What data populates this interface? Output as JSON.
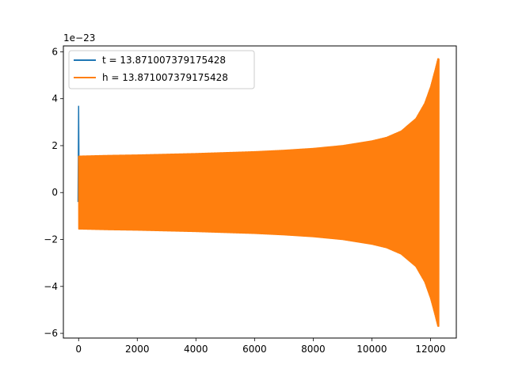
{
  "chart_data": {
    "type": "line",
    "offset_text": "1e−23",
    "xlim": [
      -520,
      12880
    ],
    "ylim": [
      -6.2,
      6.25
    ],
    "xticks": [
      0,
      2000,
      4000,
      6000,
      8000,
      10000,
      12000
    ],
    "xtick_labels": [
      "0",
      "2000",
      "4000",
      "6000",
      "8000",
      "10000",
      "12000"
    ],
    "yticks": [
      -6,
      -4,
      -2,
      0,
      2,
      4,
      6
    ],
    "ytick_labels": [
      "−6",
      "−4",
      "−2",
      "0",
      "2",
      "4",
      "6"
    ],
    "legend_position": "top-left",
    "series": [
      {
        "name": "t = 13.871007379175428",
        "color": "#1f77b4",
        "spike": {
          "x": [
            -20,
            0,
            20
          ],
          "y": [
            -0.4,
            3.7,
            -0.4
          ]
        }
      },
      {
        "name": "h = 13.871007379175428",
        "color": "#ff7f0e",
        "x_start": 0,
        "x_end": 12290,
        "envelope": [
          [
            0,
            1.55
          ],
          [
            1000,
            1.58
          ],
          [
            2000,
            1.6
          ],
          [
            3000,
            1.63
          ],
          [
            4000,
            1.66
          ],
          [
            5000,
            1.7
          ],
          [
            6000,
            1.74
          ],
          [
            7000,
            1.8
          ],
          [
            8000,
            1.88
          ],
          [
            9000,
            2.0
          ],
          [
            10000,
            2.2
          ],
          [
            10500,
            2.35
          ],
          [
            11000,
            2.62
          ],
          [
            11500,
            3.15
          ],
          [
            11800,
            3.8
          ],
          [
            12000,
            4.5
          ],
          [
            12150,
            5.2
          ],
          [
            12250,
            5.7
          ],
          [
            12290,
            5.7
          ]
        ]
      }
    ]
  }
}
